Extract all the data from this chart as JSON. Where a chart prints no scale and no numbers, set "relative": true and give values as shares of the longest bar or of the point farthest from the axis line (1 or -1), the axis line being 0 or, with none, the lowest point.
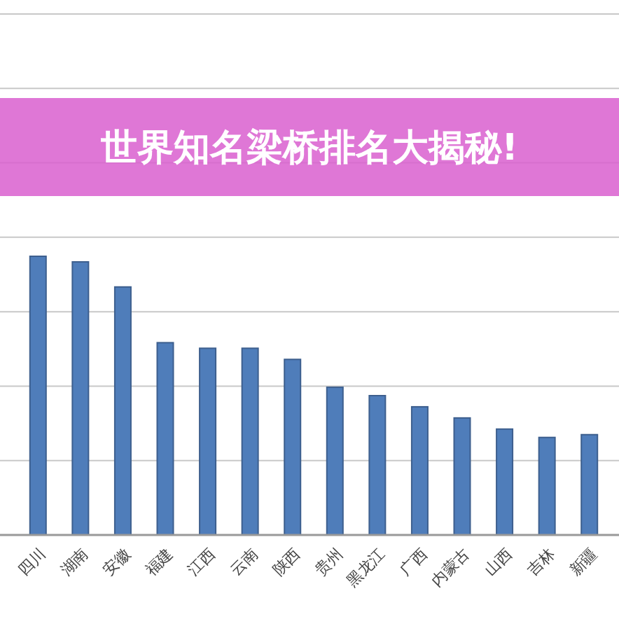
{
  "chart_data": {
    "type": "bar",
    "title": "世界知名梁桥排名大揭秘!",
    "relative": true,
    "grid": "y",
    "categories": [
      "四川",
      "湖南",
      "安徽",
      "福建",
      "江西",
      "云南",
      "陕西",
      "贵州",
      "黑龙江",
      "广西",
      "内蒙古",
      "山西",
      "吉林",
      "新疆"
    ],
    "series": [
      {
        "color": "#4f7dba",
        "values": [
          1,
          0.98,
          0.89,
          0.69,
          0.67,
          0.67,
          0.63,
          0.53,
          0.5,
          0.46,
          0.42,
          0.38,
          0.35,
          0.36
        ]
      }
    ]
  }
}
